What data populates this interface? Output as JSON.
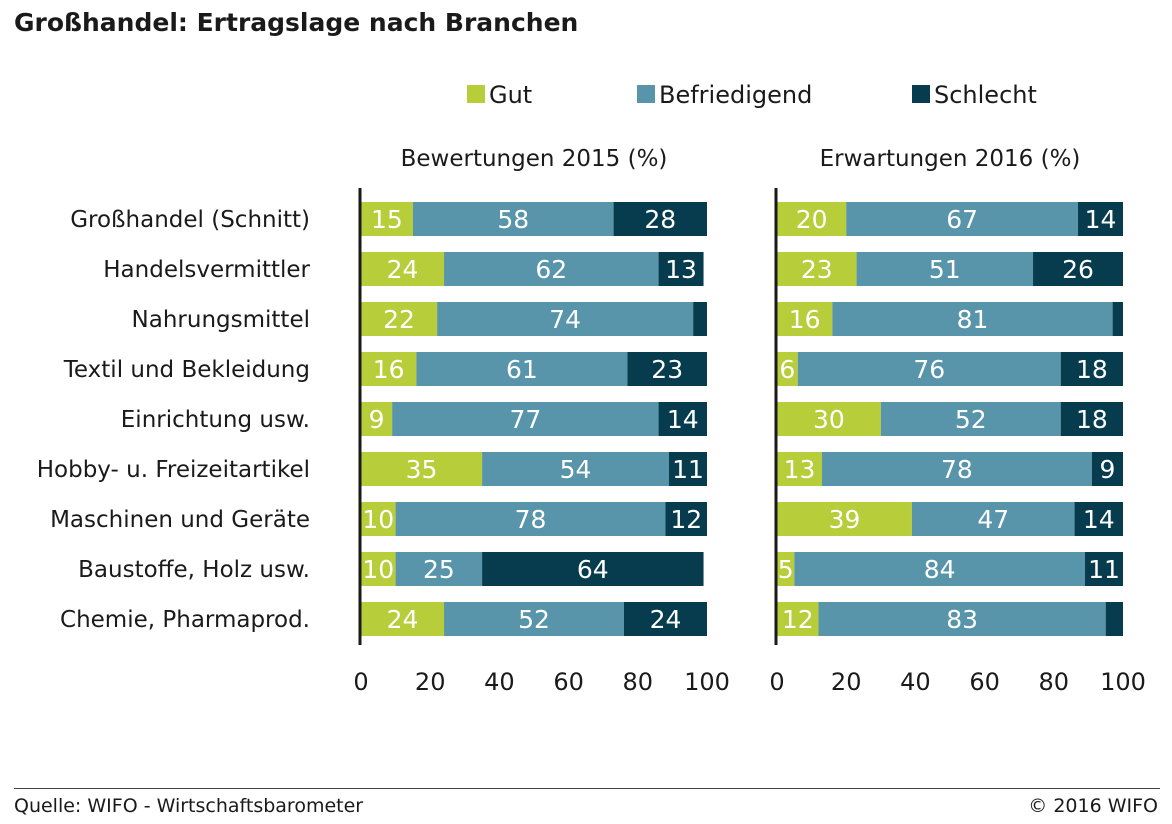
{
  "title": "Großhandel: Ertragslage nach Branchen",
  "footer": {
    "source": "Quelle: WIFO - Wirtschaftsbarometer",
    "copyright": "© 2016 WIFO"
  },
  "colors": {
    "Gut": "#b8cd3a",
    "Befriedigend": "#5895aa",
    "Schlecht": "#073b4e"
  },
  "chart_data": [
    {
      "type": "bar",
      "orientation": "horizontal",
      "stacked": true,
      "title": "Bewertungen 2015 (%)",
      "categories": [
        "Großhandel (Schnitt)",
        "Handelsvermittler",
        "Nahrungsmittel",
        "Textil und Bekleidung",
        "Einrichtung usw.",
        "Hobby- u. Freizeitartikel",
        "Maschinen und Geräte",
        "Baustoffe, Holz usw.",
        "Chemie, Pharmaprod."
      ],
      "series": [
        {
          "name": "Gut",
          "values": [
            15,
            24,
            22,
            16,
            9,
            35,
            10,
            10,
            24
          ]
        },
        {
          "name": "Befriedigend",
          "values": [
            58,
            62,
            74,
            61,
            77,
            54,
            78,
            25,
            52
          ]
        },
        {
          "name": "Schlecht",
          "values": [
            28,
            13,
            4,
            23,
            14,
            11,
            12,
            64,
            24
          ]
        }
      ],
      "data_labels": [
        [
          "15",
          "58",
          "28"
        ],
        [
          "24",
          "62",
          "13"
        ],
        [
          "22",
          "74",
          ""
        ],
        [
          "16",
          "61",
          "23"
        ],
        [
          "9",
          "77",
          "14"
        ],
        [
          "35",
          "54",
          "11"
        ],
        [
          "10",
          "78",
          "12"
        ],
        [
          "10",
          "25",
          "64"
        ],
        [
          "24",
          "52",
          "24"
        ]
      ],
      "xlim": [
        0,
        100
      ],
      "xticks": [
        0,
        20,
        40,
        60,
        80,
        100
      ],
      "legend": "top",
      "grid": false
    },
    {
      "type": "bar",
      "orientation": "horizontal",
      "stacked": true,
      "title": "Erwartungen 2016 (%)",
      "categories": [
        "Großhandel (Schnitt)",
        "Handelsvermittler",
        "Nahrungsmittel",
        "Textil und Bekleidung",
        "Einrichtung usw.",
        "Hobby- u. Freizeitartikel",
        "Maschinen und Geräte",
        "Baustoffe, Holz usw.",
        "Chemie, Pharmaprod."
      ],
      "series": [
        {
          "name": "Gut",
          "values": [
            20,
            23,
            16,
            6,
            30,
            13,
            39,
            5,
            12
          ]
        },
        {
          "name": "Befriedigend",
          "values": [
            67,
            51,
            81,
            76,
            52,
            78,
            47,
            84,
            83
          ]
        },
        {
          "name": "Schlecht",
          "values": [
            14,
            26,
            3,
            18,
            18,
            9,
            14,
            11,
            5
          ]
        }
      ],
      "data_labels": [
        [
          "20",
          "67",
          "14"
        ],
        [
          "23",
          "51",
          "26"
        ],
        [
          "16",
          "81",
          ""
        ],
        [
          "6",
          "76",
          "18"
        ],
        [
          "30",
          "52",
          "18"
        ],
        [
          "13",
          "78",
          "9"
        ],
        [
          "39",
          "47",
          "14"
        ],
        [
          "5",
          "84",
          "11"
        ],
        [
          "12",
          "83",
          ""
        ]
      ],
      "xlim": [
        0,
        100
      ],
      "xticks": [
        0,
        20,
        40,
        60,
        80,
        100
      ],
      "legend": "top",
      "grid": false
    }
  ]
}
